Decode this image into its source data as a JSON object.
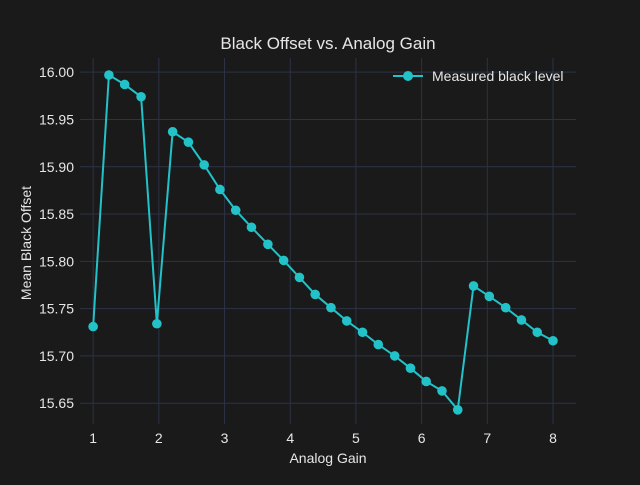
{
  "chart_data": {
    "type": "line",
    "title": "Black Offset vs. Analog Gain",
    "xlabel": "Analog Gain",
    "ylabel": "Mean Black Offset",
    "xlim": [
      0.8,
      8.35
    ],
    "ylim": [
      15.628,
      16.015
    ],
    "x_ticks": [
      1,
      2,
      3,
      4,
      5,
      6,
      7,
      8
    ],
    "y_ticks": [
      15.65,
      15.7,
      15.75,
      15.8,
      15.85,
      15.9,
      15.95,
      16.0
    ],
    "x_tick_labels": [
      "1",
      "2",
      "3",
      "4",
      "5",
      "6",
      "7",
      "8"
    ],
    "y_tick_labels": [
      "15.65",
      "15.70",
      "15.75",
      "15.80",
      "15.85",
      "15.90",
      "15.95",
      "16.00"
    ],
    "grid": true,
    "legend_position": "top-right",
    "series": [
      {
        "name": "Measured black level",
        "color": "#22c2c8",
        "marker": "circle",
        "x": [
          1.0,
          1.24,
          1.48,
          1.73,
          1.97,
          2.21,
          2.45,
          2.69,
          2.93,
          3.17,
          3.41,
          3.66,
          3.9,
          4.14,
          4.38,
          4.62,
          4.86,
          5.1,
          5.34,
          5.59,
          5.83,
          6.07,
          6.31,
          6.55,
          6.79,
          7.03,
          7.28,
          7.52,
          7.76,
          8.0
        ],
        "y": [
          15.731,
          15.997,
          15.987,
          15.974,
          15.734,
          15.937,
          15.926,
          15.902,
          15.876,
          15.854,
          15.836,
          15.818,
          15.801,
          15.783,
          15.765,
          15.751,
          15.737,
          15.725,
          15.712,
          15.7,
          15.687,
          15.673,
          15.663,
          15.643,
          15.774,
          15.763,
          15.751,
          15.738,
          15.725,
          15.716
        ]
      }
    ]
  },
  "colors": {
    "background": "#1a1a1a",
    "grid": "#2c3347",
    "text": "#e6e6e6",
    "series": "#22c2c8"
  }
}
